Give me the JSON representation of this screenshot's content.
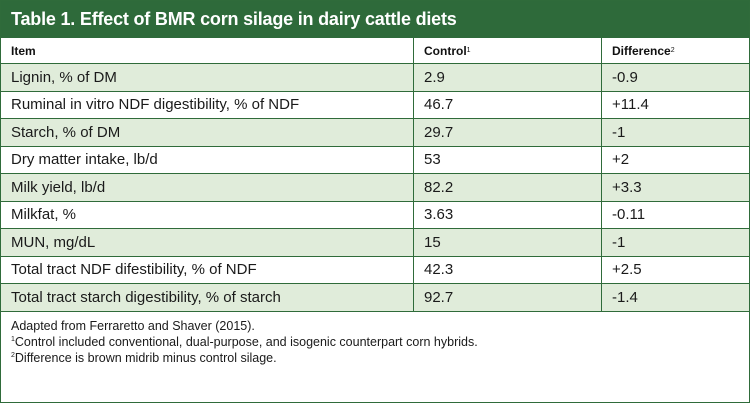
{
  "table": {
    "title": "Table 1. Effect of BMR corn silage in dairy cattle diets",
    "headers": {
      "item": "Item",
      "control": "Control",
      "control_sup": "1",
      "difference": "Difference",
      "difference_sup": "2"
    },
    "rows": [
      {
        "item": "Lignin, % of DM",
        "control": "2.9",
        "difference": "-0.9"
      },
      {
        "item": "Ruminal in vitro NDF digestibility, % of NDF",
        "control": "46.7",
        "difference": "+11.4"
      },
      {
        "item": "Starch, % of DM",
        "control": "29.7",
        "difference": "-1"
      },
      {
        "item": "Dry matter intake, lb/d",
        "control": "53",
        "difference": "+2"
      },
      {
        "item": "Milk yield, lb/d",
        "control": "82.2",
        "difference": "+3.3"
      },
      {
        "item": "Milkfat, %",
        "control": "3.63",
        "difference": "-0.11"
      },
      {
        "item": "MUN, mg/dL",
        "control": "15",
        "difference": "-1"
      },
      {
        "item": "Total tract NDF difestibility, % of NDF",
        "control": "42.3",
        "difference": "+2.5"
      },
      {
        "item": "Total tract starch digestibility, % of starch",
        "control": "92.7",
        "difference": "-1.4"
      }
    ],
    "footnotes": {
      "source": "Adapted from Ferraretto and Shaver (2015).",
      "note1_sup": "1",
      "note1": "Control included conventional, dual-purpose, and isogenic counterpart corn hybrids.",
      "note2_sup": "2",
      "note2": "Difference is brown midrib minus control silage."
    },
    "colors": {
      "title_bg": "#2e6a3a",
      "row_shade": "#e0ecda"
    }
  }
}
